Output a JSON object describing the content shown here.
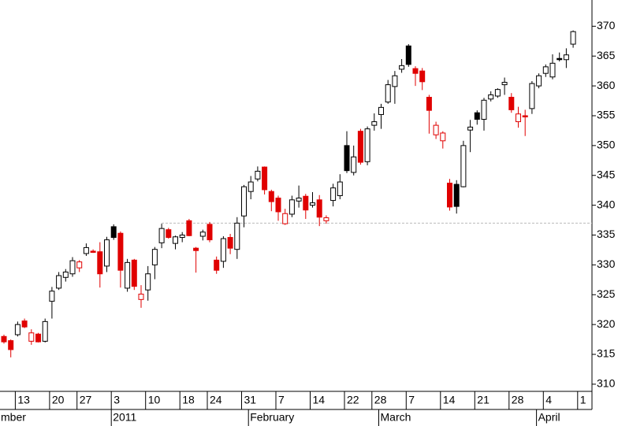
{
  "chart_data": {
    "type": "candlestick",
    "categories": [
      null,
      null,
      "13",
      null,
      null,
      null,
      null,
      "20",
      null,
      null,
      null,
      "27",
      null,
      null,
      null,
      null,
      "3",
      null,
      null,
      null,
      null,
      "10",
      null,
      null,
      null,
      null,
      "18",
      null,
      null,
      null,
      "24",
      null,
      null,
      null,
      null,
      "31",
      null,
      null,
      null,
      null,
      "7",
      null,
      null,
      null,
      null,
      "14",
      null,
      null,
      null,
      null,
      "22",
      null,
      null,
      null,
      "28",
      null,
      null,
      null,
      null,
      "7",
      null,
      null,
      null,
      null,
      "14",
      null,
      null,
      null,
      null,
      "21",
      null,
      null,
      null,
      null,
      "28",
      null,
      null,
      null,
      null,
      "4",
      null,
      null,
      null,
      null,
      "1"
    ],
    "open": [
      318.0,
      317.3,
      318.3,
      320.6,
      317.2,
      318.4,
      317.2,
      323.9,
      326.1,
      327.9,
      328.5,
      329.5,
      331.9,
      332.3,
      332.2,
      329.8,
      336.4,
      335.3,
      326.1,
      330.8,
      324.2,
      325.8,
      330.0,
      333.7,
      335.9,
      333.6,
      334.6,
      337.4,
      332.8,
      334.8,
      336.8,
      330.8,
      330.6,
      334.6,
      332.6,
      338.2,
      342.3,
      344.4,
      346.4,
      342.3,
      341.2,
      336.9,
      338.5,
      340.7,
      341.5,
      340.0,
      340.9,
      337.4,
      340.8,
      341.6,
      350.0,
      345.5,
      352.4,
      347.3,
      353.4,
      355.2,
      357.3,
      359.9,
      362.8,
      366.7,
      362.9,
      362.5,
      358.1,
      351.8,
      350.8,
      343.7,
      343.5,
      343.1,
      352.6,
      355.5,
      354.4,
      357.8,
      358.3,
      360.2,
      358.1,
      354.0,
      355.0,
      356.2,
      360.0,
      362.1,
      361.5,
      364.6,
      364.4,
      367.0,
      null
    ],
    "high": [
      318.3,
      317.5,
      320.5,
      321.0,
      319.2,
      318.6,
      321.0,
      326.3,
      328.8,
      329.3,
      331.3,
      330.8,
      333.6,
      332.6,
      333.8,
      334.7,
      336.8,
      335.6,
      331.0,
      331.0,
      326.6,
      329.8,
      333.0,
      336.9,
      336.2,
      334.9,
      335.5,
      337.7,
      333.0,
      335.9,
      337.2,
      331.4,
      334.8,
      335.2,
      338.0,
      343.4,
      344.9,
      346.5,
      346.5,
      342.6,
      341.6,
      339.4,
      341.6,
      343.3,
      341.9,
      342.2,
      341.7,
      338.3,
      343.6,
      345.2,
      352.4,
      350.0,
      352.8,
      353.2,
      355.4,
      357.0,
      361.0,
      362.5,
      364.5,
      367.0,
      363.3,
      363.0,
      358.5,
      354.0,
      352.4,
      344.4,
      344.2,
      350.8,
      354.3,
      355.9,
      358.0,
      359.1,
      359.6,
      361.4,
      358.8,
      356.5,
      356.0,
      360.8,
      362.1,
      363.6,
      365.3,
      365.6,
      366.3,
      369.3,
      null
    ],
    "low": [
      316.8,
      314.5,
      318.0,
      319.4,
      316.6,
      317.0,
      317.0,
      321.0,
      325.8,
      327.2,
      328.0,
      328.8,
      331.5,
      332.0,
      326.2,
      328.8,
      334.2,
      326.2,
      325.5,
      325.8,
      322.8,
      324.0,
      327.6,
      332.8,
      334.4,
      332.6,
      333.8,
      334.8,
      328.7,
      334.1,
      333.8,
      328.5,
      329.5,
      331.8,
      331.0,
      336.3,
      341.0,
      344.0,
      341.8,
      339.0,
      337.4,
      336.7,
      338.0,
      339.6,
      337.7,
      339.6,
      336.5,
      336.9,
      339.8,
      341.0,
      345.4,
      345.0,
      346.8,
      346.7,
      352.5,
      352.8,
      357.0,
      357.0,
      362.2,
      363.2,
      360.0,
      359.3,
      352.0,
      351.1,
      349.5,
      339.1,
      338.6,
      343.0,
      348.9,
      353.5,
      352.5,
      357.4,
      358.0,
      358.5,
      355.5,
      353.0,
      351.6,
      355.3,
      359.6,
      361.5,
      361.1,
      364.1,
      363.0,
      366.4,
      null
    ],
    "close": [
      317.1,
      315.8,
      320.0,
      319.6,
      318.6,
      317.1,
      320.5,
      325.6,
      328.2,
      328.8,
      330.7,
      330.5,
      332.9,
      332.1,
      328.5,
      334.2,
      334.6,
      329.1,
      330.4,
      326.4,
      325.1,
      328.5,
      332.6,
      336.1,
      334.6,
      334.7,
      335.0,
      334.9,
      332.4,
      335.5,
      334.2,
      329.1,
      334.4,
      332.8,
      337.0,
      343.1,
      343.9,
      345.7,
      342.6,
      340.6,
      338.9,
      338.6,
      340.9,
      341.2,
      339.2,
      340.4,
      338.0,
      337.9,
      342.9,
      343.9,
      345.8,
      348.1,
      347.2,
      352.8,
      354.0,
      356.4,
      360.2,
      361.7,
      363.4,
      363.6,
      362.1,
      360.7,
      355.9,
      353.4,
      352.1,
      339.7,
      339.8,
      350.0,
      353.1,
      354.4,
      357.6,
      358.5,
      359.4,
      360.6,
      356.0,
      355.3,
      354.8,
      360.4,
      361.7,
      363.2,
      363.8,
      364.4,
      365.2,
      369.1,
      null
    ],
    "month_labels": [
      "mber",
      "2011",
      "February",
      "March",
      "April"
    ],
    "colors": {
      "rise": "#000000",
      "fall": "#e00000",
      "hollow": "#ffffff"
    },
    "ylim": [
      308.8,
      374.4
    ],
    "yticks": [
      310,
      315,
      320,
      325,
      330,
      335,
      340,
      345,
      350,
      355,
      360,
      365,
      370
    ],
    "hline": 337.0
  }
}
